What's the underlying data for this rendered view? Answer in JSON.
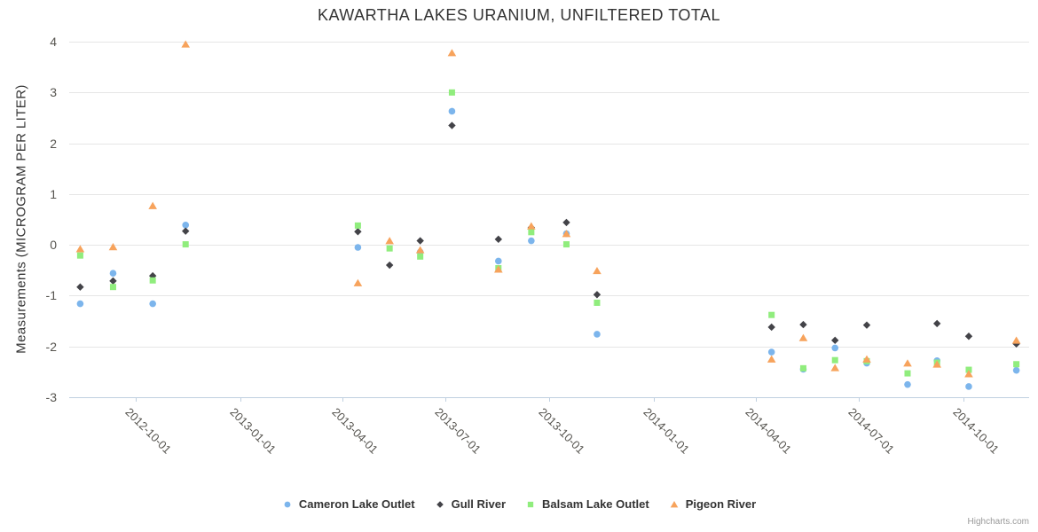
{
  "title": "KAWARTHA LAKES URANIUM, UNFILTERED TOTAL",
  "credit": "Highcharts.com",
  "chart_data": {
    "type": "scatter",
    "title": "KAWARTHA LAKES URANIUM, UNFILTERED TOTAL",
    "xlabel": "",
    "ylabel": "Measurements (MICROGRAM PER LITER)",
    "ylim": [
      -3,
      4
    ],
    "yticks": [
      4,
      3,
      2,
      1,
      0,
      -1,
      -2,
      -3
    ],
    "xticks": [
      "2012-10-01",
      "2013-01-01",
      "2013-04-01",
      "2013-07-01",
      "2013-10-01",
      "2014-01-01",
      "2014-04-01",
      "2014-07-01",
      "2014-10-01"
    ],
    "grid": "horizontal",
    "legend_position": "bottom",
    "series": [
      {
        "name": "Cameron Lake Outlet",
        "color": "#7cb5ec",
        "marker": "circle",
        "points": [
          {
            "date": "2012-08-13",
            "value": -1.16
          },
          {
            "date": "2012-09-11",
            "value": -0.56
          },
          {
            "date": "2012-10-16",
            "value": -1.16
          },
          {
            "date": "2012-11-14",
            "value": 0.39
          },
          {
            "date": "2013-04-15",
            "value": -0.05
          },
          {
            "date": "2013-06-09",
            "value": -0.14
          },
          {
            "date": "2013-07-07",
            "value": 2.63
          },
          {
            "date": "2013-08-17",
            "value": -0.32
          },
          {
            "date": "2013-09-15",
            "value": 0.08
          },
          {
            "date": "2013-10-16",
            "value": 0.22
          },
          {
            "date": "2013-11-12",
            "value": -1.76
          },
          {
            "date": "2014-04-15",
            "value": -2.11
          },
          {
            "date": "2014-05-13",
            "value": -2.45
          },
          {
            "date": "2014-06-10",
            "value": -2.03
          },
          {
            "date": "2014-07-08",
            "value": -2.33
          },
          {
            "date": "2014-08-13",
            "value": -2.75
          },
          {
            "date": "2014-09-08",
            "value": -2.28
          },
          {
            "date": "2014-10-06",
            "value": -2.79
          },
          {
            "date": "2014-11-17",
            "value": -2.47
          }
        ]
      },
      {
        "name": "Gull River",
        "color": "#434348",
        "marker": "diamond",
        "points": [
          {
            "date": "2012-08-13",
            "value": -0.83
          },
          {
            "date": "2012-09-11",
            "value": -0.71
          },
          {
            "date": "2012-10-16",
            "value": -0.61
          },
          {
            "date": "2012-11-14",
            "value": 0.27
          },
          {
            "date": "2013-04-15",
            "value": 0.26
          },
          {
            "date": "2013-05-13",
            "value": -0.4
          },
          {
            "date": "2013-06-09",
            "value": 0.08
          },
          {
            "date": "2013-07-07",
            "value": 2.35
          },
          {
            "date": "2013-08-17",
            "value": 0.11
          },
          {
            "date": "2013-09-15",
            "value": 0.34
          },
          {
            "date": "2013-10-16",
            "value": 0.44
          },
          {
            "date": "2013-11-12",
            "value": -0.98
          },
          {
            "date": "2014-04-15",
            "value": -1.62
          },
          {
            "date": "2014-05-13",
            "value": -1.57
          },
          {
            "date": "2014-06-10",
            "value": -1.88
          },
          {
            "date": "2014-07-08",
            "value": -1.58
          },
          {
            "date": "2014-09-08",
            "value": -1.55
          },
          {
            "date": "2014-10-06",
            "value": -1.8
          },
          {
            "date": "2014-11-17",
            "value": -1.95
          }
        ]
      },
      {
        "name": "Balsam Lake Outlet",
        "color": "#90ed7d",
        "marker": "square",
        "points": [
          {
            "date": "2012-08-13",
            "value": -0.21
          },
          {
            "date": "2012-09-11",
            "value": -0.83
          },
          {
            "date": "2012-10-16",
            "value": -0.7
          },
          {
            "date": "2012-11-14",
            "value": 0.01
          },
          {
            "date": "2013-04-15",
            "value": 0.38
          },
          {
            "date": "2013-05-13",
            "value": -0.07
          },
          {
            "date": "2013-06-09",
            "value": -0.23
          },
          {
            "date": "2013-07-07",
            "value": 3.0
          },
          {
            "date": "2013-08-17",
            "value": -0.46
          },
          {
            "date": "2013-09-15",
            "value": 0.25
          },
          {
            "date": "2013-10-16",
            "value": 0.01
          },
          {
            "date": "2013-11-12",
            "value": -1.14
          },
          {
            "date": "2014-04-15",
            "value": -1.38
          },
          {
            "date": "2014-05-13",
            "value": -2.43
          },
          {
            "date": "2014-06-10",
            "value": -2.27
          },
          {
            "date": "2014-07-08",
            "value": -2.29
          },
          {
            "date": "2014-08-13",
            "value": -2.53
          },
          {
            "date": "2014-09-08",
            "value": -2.32
          },
          {
            "date": "2014-10-06",
            "value": -2.46
          },
          {
            "date": "2014-11-17",
            "value": -2.35
          }
        ]
      },
      {
        "name": "Pigeon River",
        "color": "#f7a35c",
        "marker": "triangle",
        "points": [
          {
            "date": "2012-08-13",
            "value": -0.08
          },
          {
            "date": "2012-09-11",
            "value": -0.04
          },
          {
            "date": "2012-10-16",
            "value": 0.77
          },
          {
            "date": "2012-11-14",
            "value": 3.95
          },
          {
            "date": "2013-04-15",
            "value": -0.75
          },
          {
            "date": "2013-05-13",
            "value": 0.08
          },
          {
            "date": "2013-06-09",
            "value": -0.1
          },
          {
            "date": "2013-07-07",
            "value": 3.78
          },
          {
            "date": "2013-08-17",
            "value": -0.48
          },
          {
            "date": "2013-09-15",
            "value": 0.37
          },
          {
            "date": "2013-10-16",
            "value": 0.22
          },
          {
            "date": "2013-11-12",
            "value": -0.51
          },
          {
            "date": "2014-04-15",
            "value": -2.25
          },
          {
            "date": "2014-05-13",
            "value": -1.83
          },
          {
            "date": "2014-06-10",
            "value": -2.42
          },
          {
            "date": "2014-07-08",
            "value": -2.25
          },
          {
            "date": "2014-08-13",
            "value": -2.33
          },
          {
            "date": "2014-09-08",
            "value": -2.35
          },
          {
            "date": "2014-10-06",
            "value": -2.54
          },
          {
            "date": "2014-11-17",
            "value": -1.88
          }
        ]
      }
    ],
    "colors": {
      "grid": "#e6e6e6",
      "axis": "#c0d0e0",
      "title_text": "#333333",
      "axis_label_text": "#56544f",
      "credit_text": "#999999"
    }
  }
}
